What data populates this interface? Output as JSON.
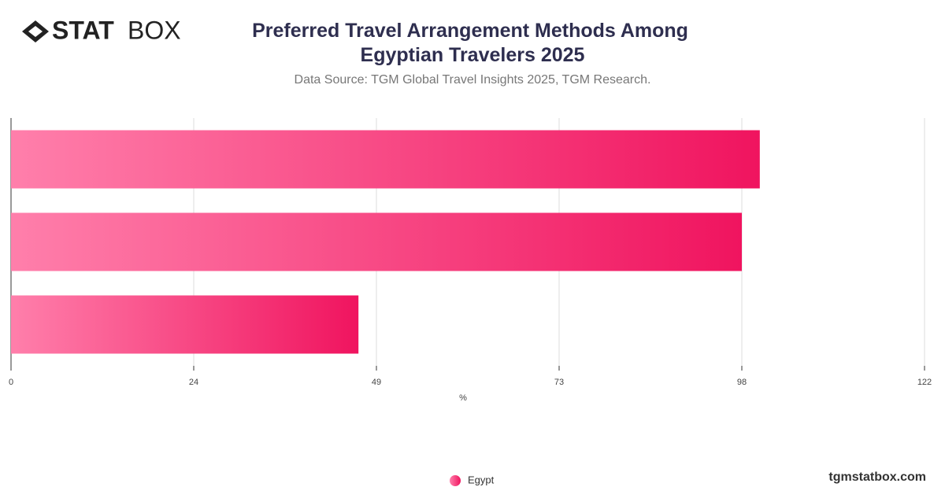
{
  "brand": {
    "bold": "STAT",
    "light": "BOX"
  },
  "footer": "tgmstatbox.com",
  "chart_data": {
    "type": "hbar",
    "title": "Preferred Travel Arrangement Methods Among Egyptian Travelers 2025",
    "subtitle": "Data Source: TGM Global Travel Insights 2025, TGM Research.",
    "x_label": "%",
    "categories": [
      null,
      null,
      null
    ],
    "series": [
      {
        "name": "Egypt",
        "color": "#f0145f",
        "values": [
          100,
          97.6,
          46.4
        ]
      }
    ],
    "xlim": [
      0,
      122
    ],
    "xticks": [
      0,
      {
        "value": 24.4,
        "label": "24"
      },
      {
        "value": 48.8,
        "label": "49"
      },
      {
        "value": 73.2,
        "label": "73"
      },
      {
        "value": 97.6,
        "label": "98"
      },
      122
    ],
    "grid": true,
    "legend": "bottom"
  }
}
